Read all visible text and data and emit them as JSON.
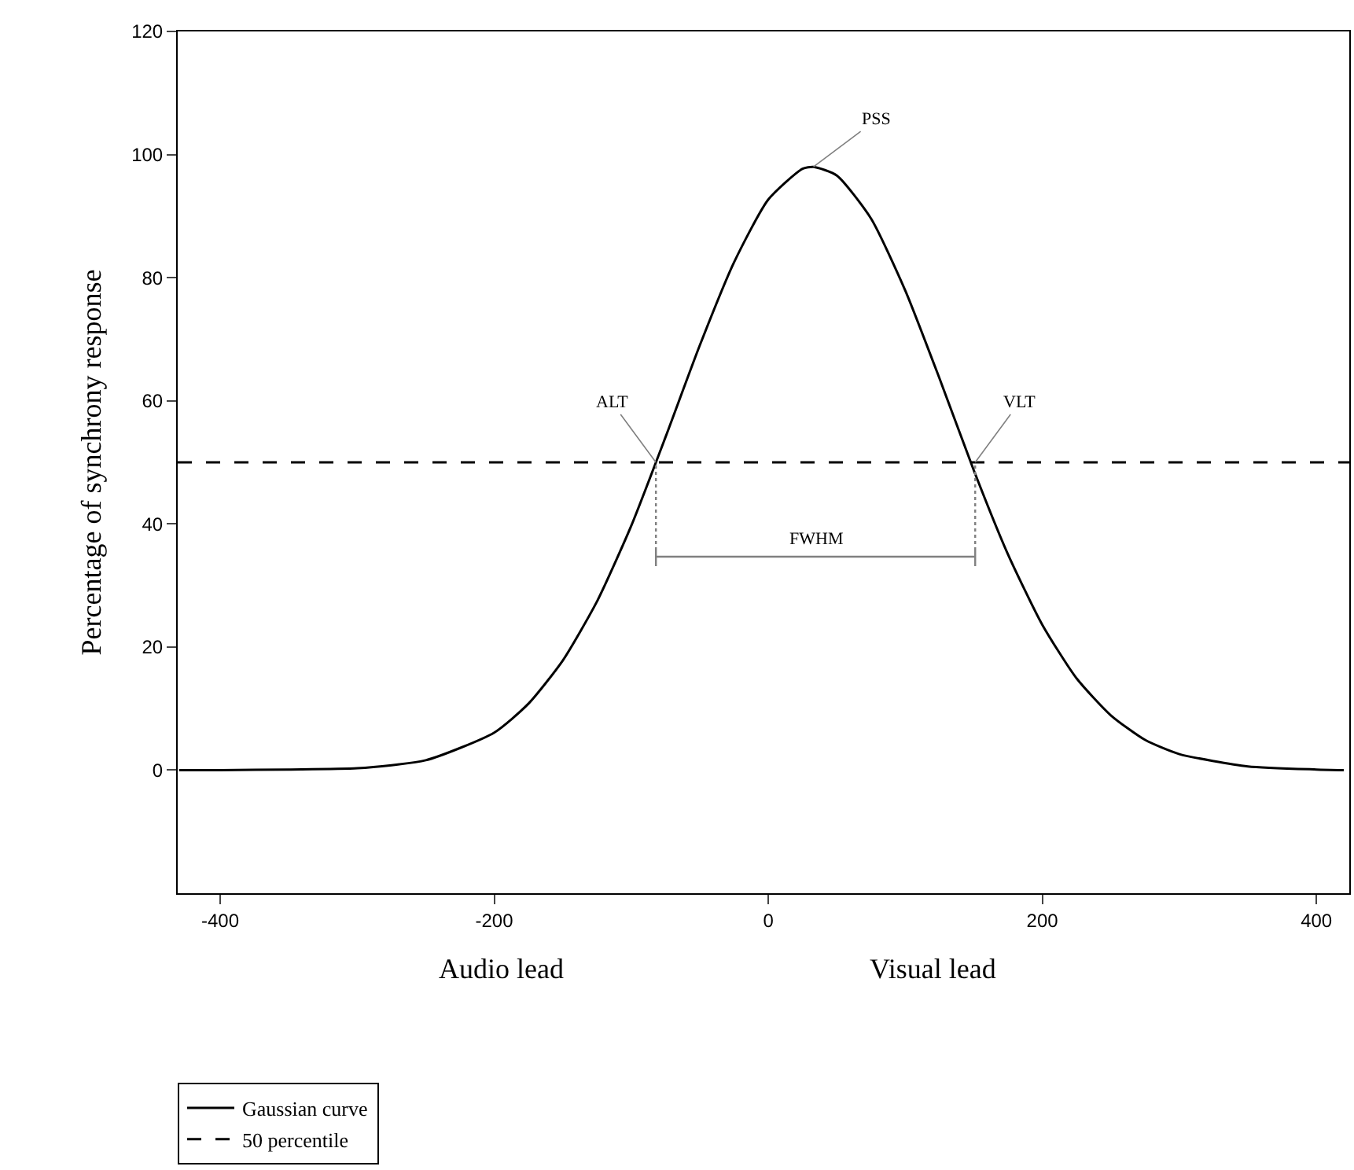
{
  "chart_data": {
    "type": "line",
    "ylabel": "Percentage of synchrony response",
    "x": [
      -430,
      -400,
      -350,
      -300,
      -250,
      -200,
      -175,
      -150,
      -125,
      -100,
      -75,
      -50,
      -25,
      0,
      25,
      33,
      50,
      75,
      100,
      125,
      150,
      175,
      200,
      225,
      250,
      275,
      300,
      350,
      400,
      420
    ],
    "series": [
      {
        "name": "Gaussian curve",
        "color": "#000000",
        "line_style": "solid",
        "values": [
          0,
          0,
          0.1,
          0.3,
          1.6,
          6.1,
          10.8,
          17.8,
          27.4,
          39.7,
          54.1,
          69.0,
          82.5,
          92.7,
          97.7,
          98,
          96.6,
          89.6,
          77.9,
          63.6,
          48.7,
          35.0,
          23.6,
          14.9,
          8.9,
          4.9,
          2.6,
          0.6,
          0.1,
          0
        ]
      }
    ],
    "ref_lines": [
      {
        "axis": "y",
        "value": 50,
        "label": "50 percentile",
        "color": "#000000",
        "line_style": "dashed"
      }
    ],
    "annotations": [
      {
        "text": "PSS",
        "x": 33,
        "y": 98
      },
      {
        "text": "ALT",
        "x": -82,
        "y": 50
      },
      {
        "text": "VLT",
        "x": 151,
        "y": 50
      },
      "FWHM",
      "Audio lead",
      "Visual lead"
    ],
    "xlim": [
      -431,
      424
    ],
    "ylim": [
      -20,
      120
    ],
    "xticks": [
      -400,
      -200,
      0,
      200,
      400
    ],
    "yticks": [
      0,
      20,
      40,
      60,
      80,
      100,
      120
    ],
    "grid": false,
    "legend": "bottom left",
    "marker": "none"
  }
}
